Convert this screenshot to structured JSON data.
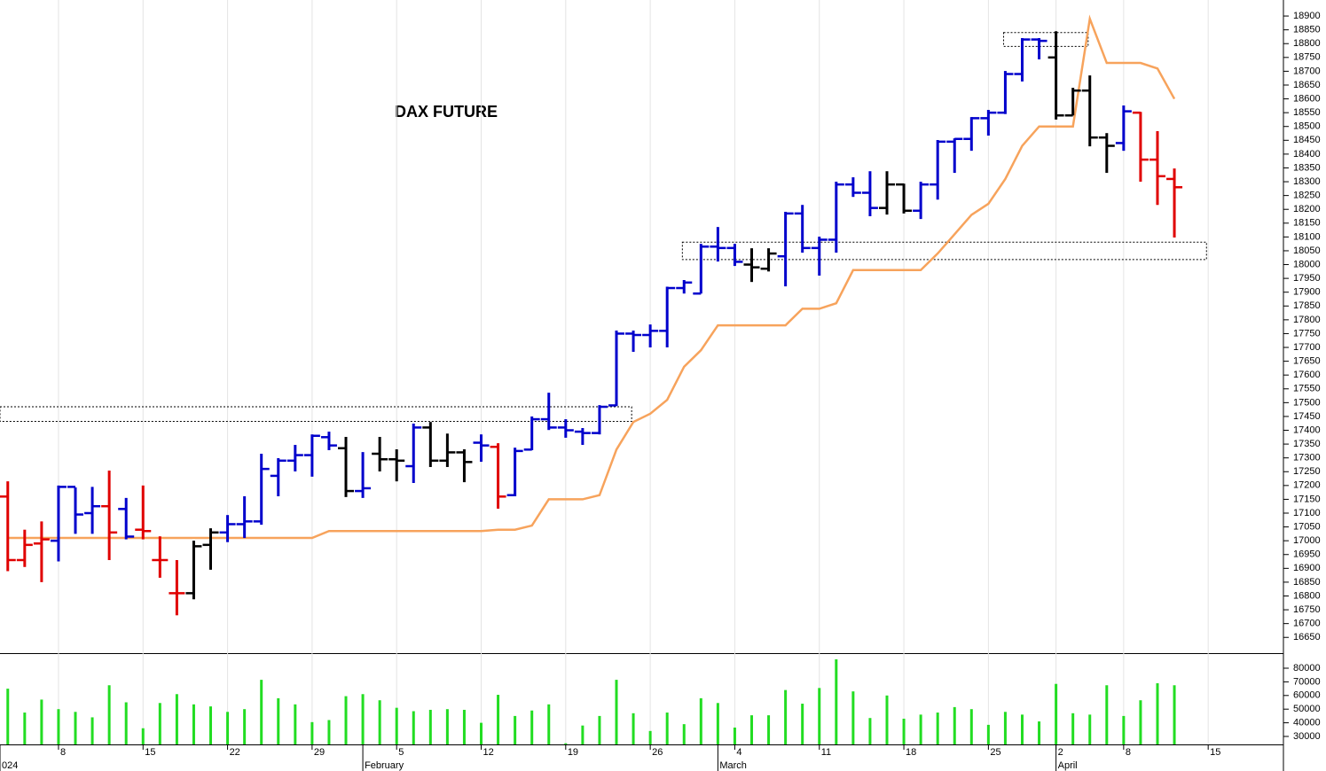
{
  "chart_data": [
    {
      "type": "ohlc",
      "title": "DAX FUTURE",
      "x": [
        0,
        1,
        2,
        3,
        4,
        5,
        6,
        7,
        8,
        9,
        10,
        11,
        12,
        13,
        14,
        15,
        16,
        17,
        18,
        19,
        20,
        21,
        22,
        23,
        24,
        25,
        26,
        27,
        28,
        29,
        30,
        31,
        32,
        33,
        34,
        35,
        36,
        37,
        38,
        39,
        40,
        41,
        42,
        43,
        44,
        45,
        46,
        47,
        48,
        49,
        50,
        51,
        52,
        53,
        54,
        55,
        56,
        57,
        58,
        59,
        60,
        61,
        62,
        63,
        64,
        65,
        66,
        67,
        68,
        69
      ],
      "open": [
        17160,
        16930,
        16990,
        17000,
        17195,
        17100,
        17125,
        17115,
        17040,
        16930,
        16810,
        16810,
        16985,
        17030,
        17060,
        17070,
        17235,
        17290,
        17310,
        17375,
        17335,
        17180,
        17315,
        17295,
        17270,
        17410,
        17290,
        17320,
        17355,
        17340,
        17165,
        17330,
        17440,
        17410,
        17395,
        17390,
        17490,
        17750,
        17745,
        17760,
        17915,
        17895,
        18065,
        18060,
        18000,
        17985,
        18030,
        18185,
        18060,
        18090,
        18290,
        18260,
        18205,
        18290,
        18195,
        18290,
        18445,
        18455,
        18530,
        18550,
        18690,
        18815,
        18750,
        18540,
        18630,
        18460,
        18440,
        18550,
        18380,
        18310
      ],
      "high": [
        17215,
        17040,
        17070,
        17200,
        17193,
        17195,
        17254,
        17155,
        17200,
        17016,
        16930,
        17000,
        17045,
        17093,
        17161,
        17315,
        17299,
        17347,
        17385,
        17395,
        17376,
        17321,
        17376,
        17331,
        17424,
        17430,
        17388,
        17331,
        17385,
        17353,
        17337,
        17450,
        17536,
        17440,
        17408,
        17491,
        17761,
        17761,
        17783,
        17920,
        17944,
        18075,
        18136,
        18075,
        18059,
        18059,
        18191,
        18216,
        18101,
        18300,
        18316,
        18338,
        18338,
        18293,
        18300,
        18451,
        18457,
        18534,
        18560,
        18701,
        18820,
        18820,
        18845,
        18640,
        18685,
        18476,
        18576,
        18553,
        18483,
        18348
      ],
      "low": [
        16890,
        16905,
        16850,
        16925,
        17025,
        17025,
        16930,
        17005,
        17005,
        16866,
        16730,
        16788,
        16895,
        16995,
        17010,
        17058,
        17161,
        17251,
        17232,
        17328,
        17158,
        17155,
        17251,
        17215,
        17209,
        17267,
        17267,
        17212,
        17286,
        17116,
        17161,
        17328,
        17401,
        17373,
        17347,
        17385,
        17488,
        17684,
        17700,
        17700,
        17895,
        17895,
        18011,
        17995,
        17937,
        17975,
        17921,
        18043,
        17960,
        18043,
        18245,
        18175,
        18181,
        18185,
        18165,
        18235,
        18332,
        18412,
        18467,
        18545,
        18663,
        18743,
        18525,
        18540,
        18428,
        18332,
        18412,
        18300,
        18216,
        18098
      ],
      "close": [
        16930,
        16985,
        17005,
        17195,
        17095,
        17125,
        17030,
        17015,
        17035,
        16930,
        16810,
        16980,
        17030,
        17060,
        17070,
        17260,
        17290,
        17310,
        17380,
        17345,
        17180,
        17190,
        17295,
        17290,
        17410,
        17290,
        17320,
        17285,
        17345,
        17160,
        17325,
        17440,
        17410,
        17400,
        17390,
        17485,
        17750,
        17745,
        17760,
        17915,
        17935,
        18065,
        18060,
        18010,
        17990,
        18040,
        18185,
        18060,
        18090,
        18290,
        18260,
        18205,
        18290,
        18195,
        18290,
        18445,
        18455,
        18530,
        18550,
        18690,
        18815,
        18810,
        18540,
        18630,
        18460,
        18430,
        18555,
        18380,
        18320,
        18280
      ],
      "colors": [
        "#e00000",
        "#e00000",
        "#e00000",
        "#0000cc",
        "#0000cc",
        "#0000cc",
        "#e00000",
        "#0000cc",
        "#e00000",
        "#e00000",
        "#e00000",
        "#000000",
        "#000000",
        "#0000cc",
        "#0000cc",
        "#0000cc",
        "#0000cc",
        "#0000cc",
        "#0000cc",
        "#0000cc",
        "#000000",
        "#0000cc",
        "#000000",
        "#000000",
        "#0000cc",
        "#000000",
        "#000000",
        "#000000",
        "#0000cc",
        "#e00000",
        "#0000cc",
        "#0000cc",
        "#0000cc",
        "#0000cc",
        "#0000cc",
        "#0000cc",
        "#0000cc",
        "#0000cc",
        "#0000cc",
        "#0000cc",
        "#0000cc",
        "#0000cc",
        "#0000cc",
        "#0000cc",
        "#000000",
        "#000000",
        "#0000cc",
        "#0000cc",
        "#0000cc",
        "#0000cc",
        "#0000cc",
        "#0000cc",
        "#000000",
        "#000000",
        "#0000cc",
        "#0000cc",
        "#0000cc",
        "#0000cc",
        "#0000cc",
        "#0000cc",
        "#0000cc",
        "#0000cc",
        "#000000",
        "#000000",
        "#000000",
        "#000000",
        "#0000cc",
        "#e00000",
        "#e00000",
        "#e00000"
      ],
      "lines": [
        {
          "color": "#f7a35c",
          "values": [
            17010,
            17010,
            17010,
            17010,
            17010,
            17010,
            17010,
            17010,
            17010,
            17010,
            17010,
            17010,
            17010,
            17010,
            17010,
            17010,
            17010,
            17010,
            17010,
            17035,
            17035,
            17035,
            17035,
            17035,
            17035,
            17035,
            17035,
            17035,
            17035,
            17040,
            17040,
            17055,
            17150,
            17150,
            17150,
            17165,
            17330,
            17430,
            17460,
            17510,
            17630,
            17690,
            17780,
            17780,
            17780,
            17780,
            17780,
            17840,
            17840,
            17860,
            17980,
            17980,
            17980,
            17980,
            17980,
            18040,
            18110,
            18180,
            18220,
            18310,
            18430,
            18500,
            18500,
            18500,
            18890,
            18730,
            18730,
            18730,
            18710,
            18600
          ]
        }
      ],
      "zones": [
        {
          "x": [
            -0.5,
            36.9
          ],
          "y": [
            17432,
            17485
          ]
        },
        {
          "x": [
            58.9,
            63.9
          ],
          "y": [
            18790,
            18840
          ]
        },
        {
          "x": [
            39.9,
            70.9
          ],
          "y": [
            18018,
            18081
          ]
        }
      ],
      "xlim": [
        -0.46,
        75.45
      ],
      "ylim": [
        16593,
        18958
      ],
      "yticks": [
        16650,
        16700,
        16750,
        16800,
        16850,
        16900,
        16950,
        17000,
        17050,
        17100,
        17150,
        17200,
        17250,
        17300,
        17350,
        17400,
        17450,
        17500,
        17550,
        17600,
        17650,
        17700,
        17750,
        17800,
        17850,
        17900,
        17950,
        18000,
        18050,
        18100,
        18150,
        18200,
        18250,
        18300,
        18350,
        18400,
        18450,
        18500,
        18550,
        18600,
        18650,
        18700,
        18750,
        18800,
        18850,
        18900
      ]
    },
    {
      "type": "bar",
      "color": "#22dd22",
      "values": [
        65000,
        47500,
        57000,
        50000,
        48000,
        44000,
        67500,
        55000,
        36000,
        54500,
        61000,
        53500,
        52000,
        48000,
        50000,
        71500,
        58000,
        53500,
        40500,
        42000,
        59500,
        61000,
        56500,
        51000,
        48500,
        49500,
        50000,
        49500,
        40000,
        60500,
        45000,
        49000,
        53500,
        25000,
        38000,
        45000,
        71500,
        47000,
        34000,
        47500,
        39000,
        58000,
        54500,
        36500,
        45500,
        45500,
        64000,
        54000,
        65500,
        86500,
        63000,
        43500,
        60000,
        43000,
        46000,
        47500,
        51500,
        50000,
        38500,
        48000,
        46000,
        41000,
        68500,
        47000,
        46000,
        67500,
        45000,
        56500,
        69000,
        67500
      ],
      "ylim": [
        24156,
        90390
      ],
      "yticks": [
        30000,
        40000,
        50000,
        60000,
        70000,
        80000
      ],
      "xticks": [
        {
          "value": 3,
          "label": "8"
        },
        {
          "value": 8,
          "label": "15"
        },
        {
          "value": 13,
          "label": "22"
        },
        {
          "value": 18,
          "label": "29"
        },
        {
          "value": 23,
          "label": "5"
        },
        {
          "value": 28,
          "label": "12"
        },
        {
          "value": 33,
          "label": "19"
        },
        {
          "value": 38,
          "label": "26"
        },
        {
          "value": 43,
          "label": "4"
        },
        {
          "value": 48,
          "label": "11"
        },
        {
          "value": 53,
          "label": "18"
        },
        {
          "value": 58,
          "label": "25"
        },
        {
          "value": 62,
          "label": "2"
        },
        {
          "value": 66,
          "label": "8"
        },
        {
          "value": 71,
          "label": "15"
        }
      ],
      "month_ticks": [
        {
          "value": -0.46,
          "label": "024"
        },
        {
          "value": 21,
          "label": "February"
        },
        {
          "value": 42,
          "label": "March"
        },
        {
          "value": 62,
          "label": "April"
        }
      ]
    }
  ]
}
